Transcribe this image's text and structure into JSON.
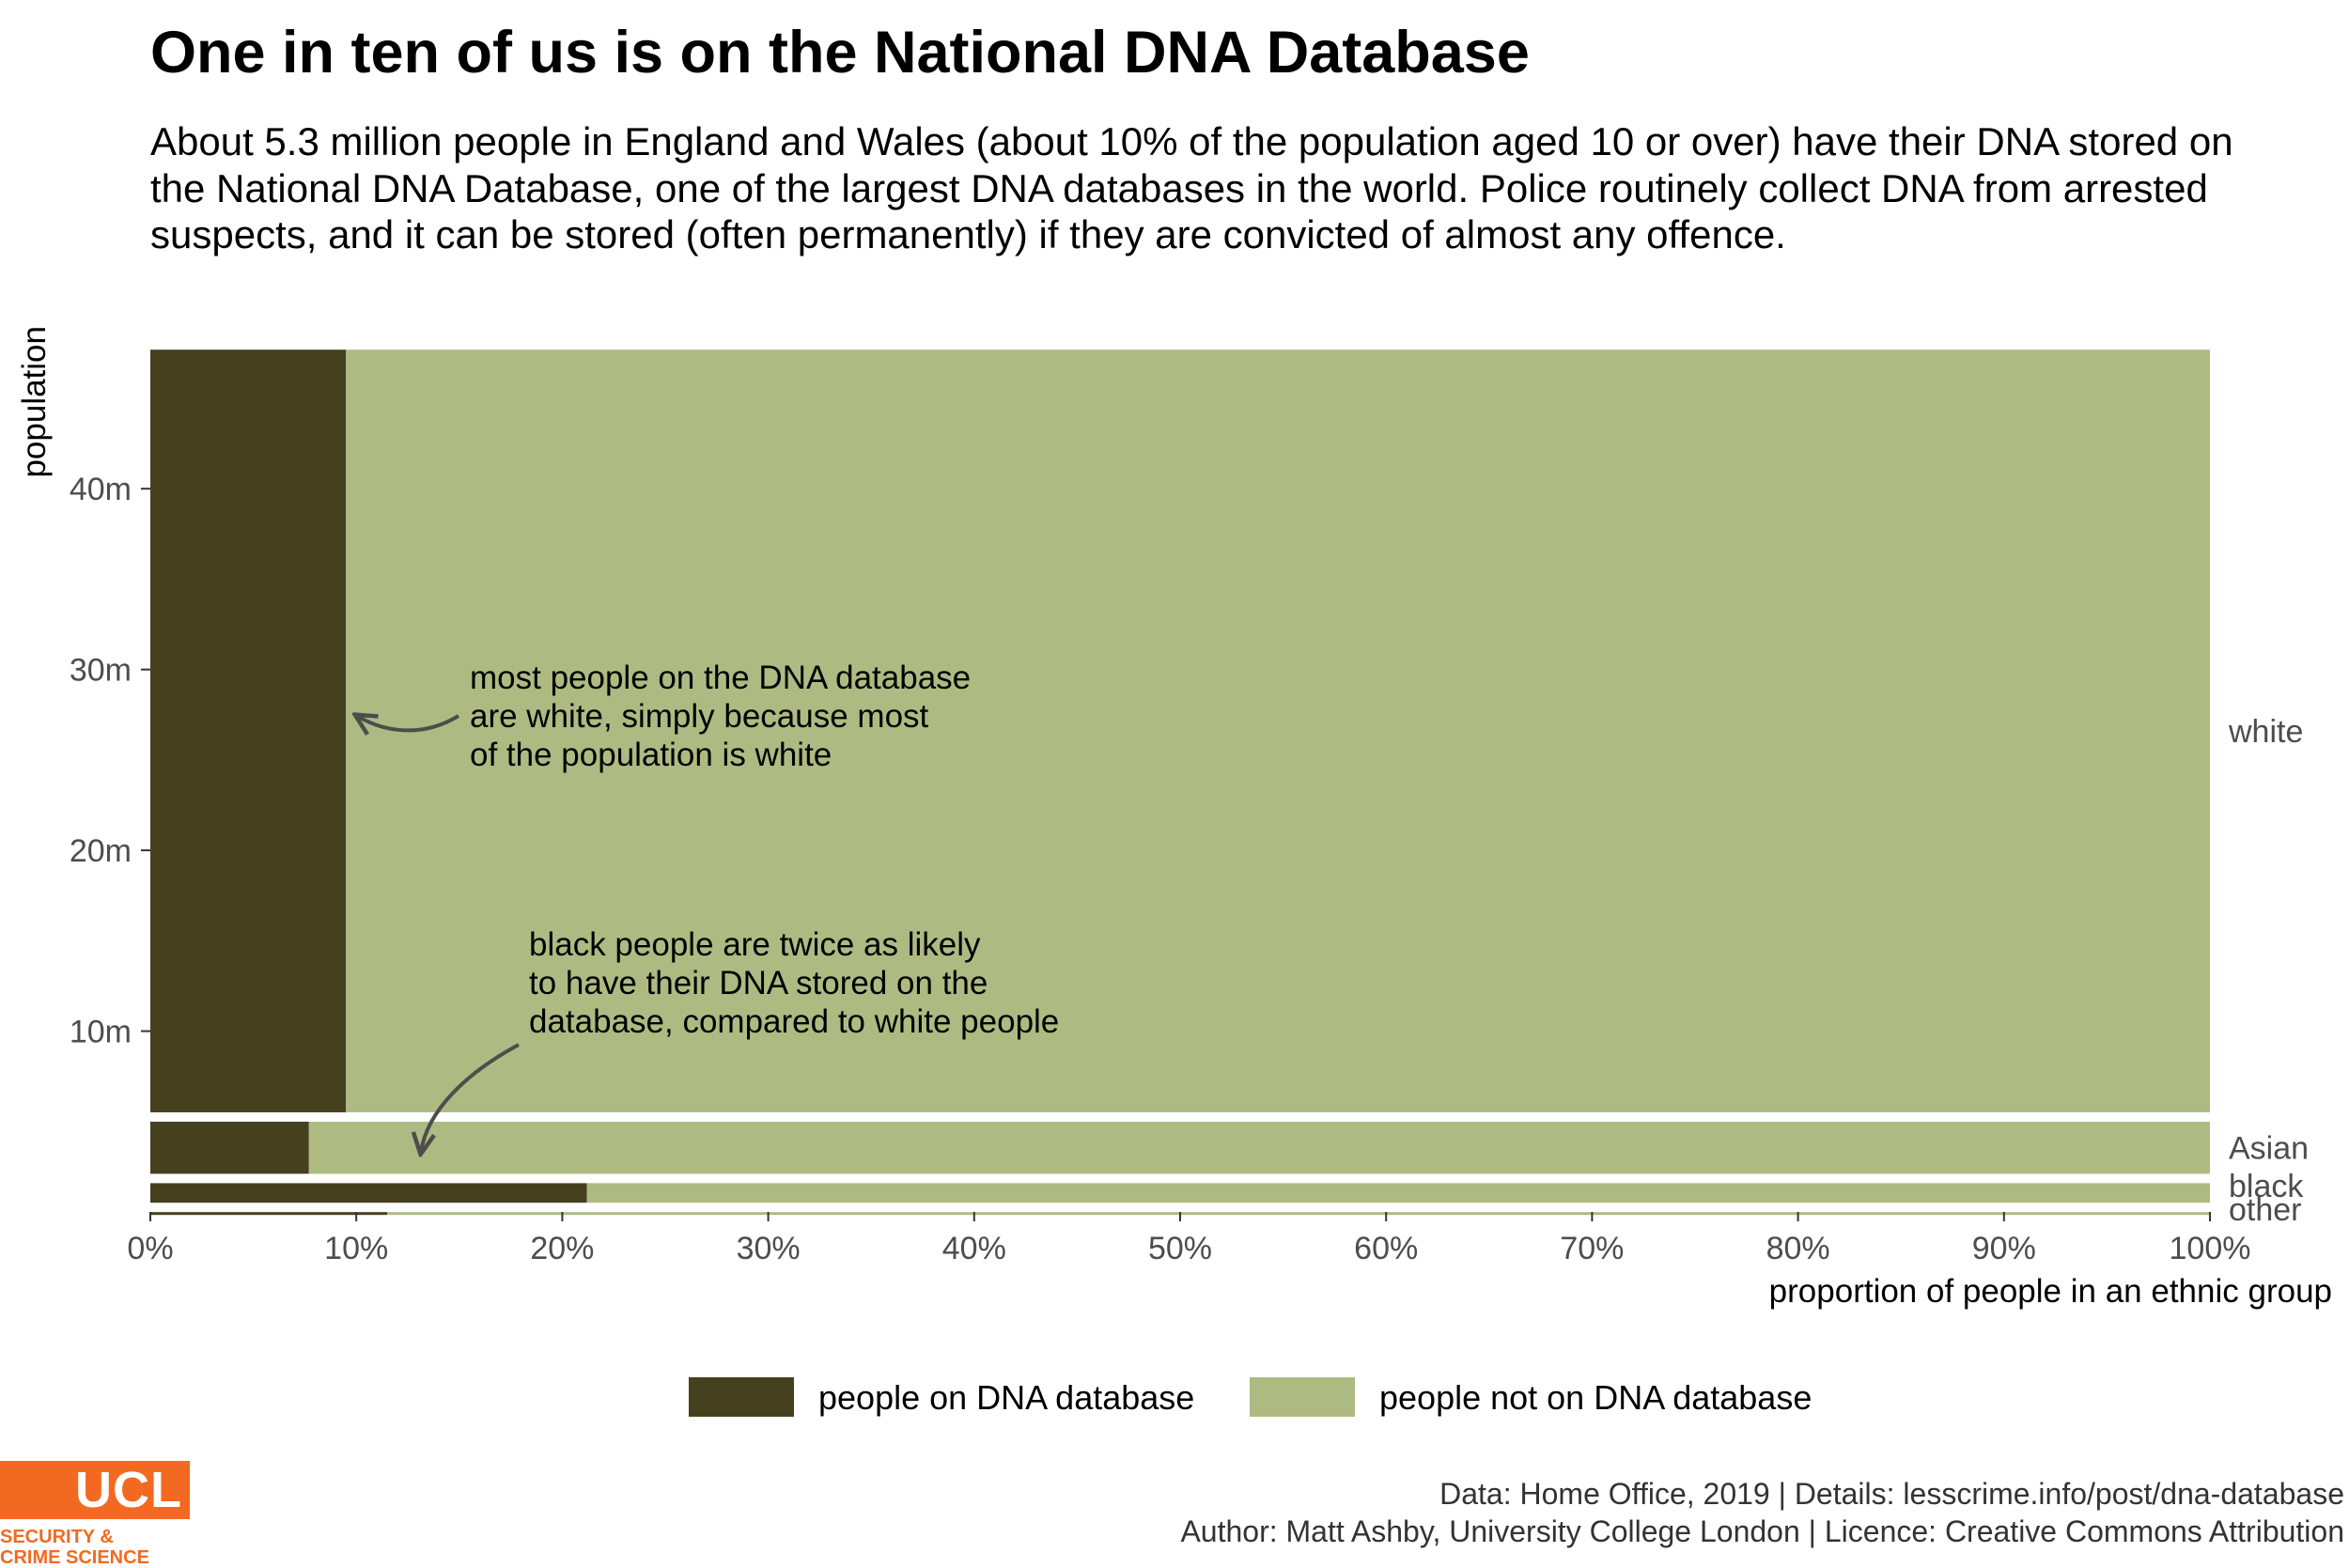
{
  "title": "One in ten of us is on the National DNA Database",
  "subtitle": "About 5.3 million people in England and Wales (about 10% of the population aged 10 or over) have their DNA stored on the National DNA Database, one of the largest DNA databases in the world. Police routinely collect DNA from arrested suspects, and it can be stored (often permanently) if they are convicted of almost any offence.",
  "caption": {
    "line1": "Data: Home Office, 2019 |  Details: lesscrime.info/post/dna-database",
    "line2": "Author: Matt Ashby, University College London |  Licence: Creative Commons Attribution"
  },
  "logo": {
    "mark": "UCL",
    "line1": "SECURITY &",
    "line2": "CRIME SCIENCE",
    "color": "#f26a21"
  },
  "chart_data": {
    "type": "bar",
    "subtype": "mosaic (marimekko) stacked proportion bars",
    "xlabel": "proportion of people in an ethnic group",
    "ylabel": "population",
    "xlim": [
      0,
      1
    ],
    "ylim": [
      0,
      49
    ],
    "x_ticks": [
      "0%",
      "10%",
      "20%",
      "30%",
      "40%",
      "50%",
      "60%",
      "70%",
      "80%",
      "90%",
      "100%"
    ],
    "y_ticks": [
      {
        "value": 10,
        "label": "10m"
      },
      {
        "value": 20,
        "label": "20m"
      },
      {
        "value": 30,
        "label": "30m"
      },
      {
        "value": 40,
        "label": "40m"
      }
    ],
    "grid": false,
    "legend_position": "bottom",
    "series": [
      {
        "name": "people on DNA database",
        "color": "#45411f"
      },
      {
        "name": "people not on DNA database",
        "color": "#adbb82"
      }
    ],
    "groups": [
      {
        "name": "white",
        "population_m": 42.7,
        "proportion_on_database": 0.095
      },
      {
        "name": "Asian",
        "population_m": 3.4,
        "proportion_on_database": 0.077
      },
      {
        "name": "black",
        "population_m": 1.6,
        "proportion_on_database": 0.212
      },
      {
        "name": "other",
        "population_m": 0.25,
        "proportion_on_database": 0.115
      }
    ],
    "annotations": [
      {
        "target": "white",
        "lines": [
          "most people on the DNA database",
          "are white, simply because most",
          "of the population is white"
        ]
      },
      {
        "target": "black",
        "lines": [
          "black people are twice as likely",
          "to have their DNA stored on the",
          "database, compared to white people"
        ]
      }
    ]
  }
}
